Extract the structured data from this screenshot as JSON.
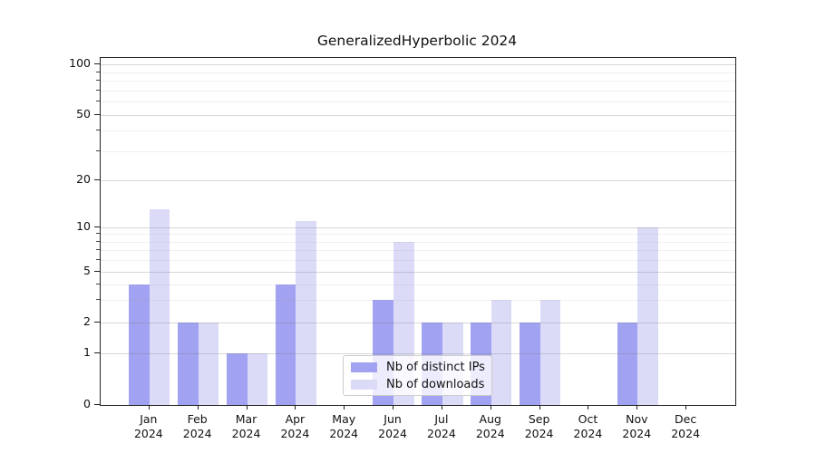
{
  "title": "GeneralizedHyperbolic 2024",
  "legend": {
    "items": [
      {
        "label": "Nb of distinct IPs",
        "color": "#a2a2f2"
      },
      {
        "label": "Nb of downloads",
        "color": "#dbdbf8"
      }
    ]
  },
  "axes": {
    "ytick_labels": [
      "100",
      "50",
      "20",
      "10",
      "5",
      "2",
      "1",
      "0"
    ],
    "year_label": "2024"
  },
  "chart_data": {
    "type": "bar",
    "title": "GeneralizedHyperbolic 2024",
    "categories": [
      "Jan 2024",
      "Feb 2024",
      "Mar 2024",
      "Apr 2024",
      "May 2024",
      "Jun 2024",
      "Jul 2024",
      "Aug 2024",
      "Sep 2024",
      "Oct 2024",
      "Nov 2024",
      "Dec 2024"
    ],
    "series": [
      {
        "name": "Nb of distinct IPs",
        "color": "#a2a2f2",
        "values": [
          4,
          2,
          1,
          4,
          0,
          3,
          2,
          2,
          2,
          0,
          2,
          0
        ]
      },
      {
        "name": "Nb of downloads",
        "color": "#dbdbf8",
        "values": [
          13,
          2,
          1,
          11,
          0,
          8,
          2,
          3,
          3,
          0,
          10,
          0
        ]
      }
    ],
    "xlabel": "",
    "ylabel": "",
    "ylim": [
      0,
      100
    ],
    "yscale": "log-like with linear 0-1 segment",
    "yticks": [
      0,
      1,
      2,
      5,
      10,
      20,
      50,
      100
    ],
    "minor_yticks": [
      3,
      4,
      6,
      7,
      8,
      9,
      30,
      40,
      60,
      70,
      80,
      90
    ],
    "grid": "horizontal major and minor gridlines",
    "legend_position": "lower center-left inside axes"
  }
}
